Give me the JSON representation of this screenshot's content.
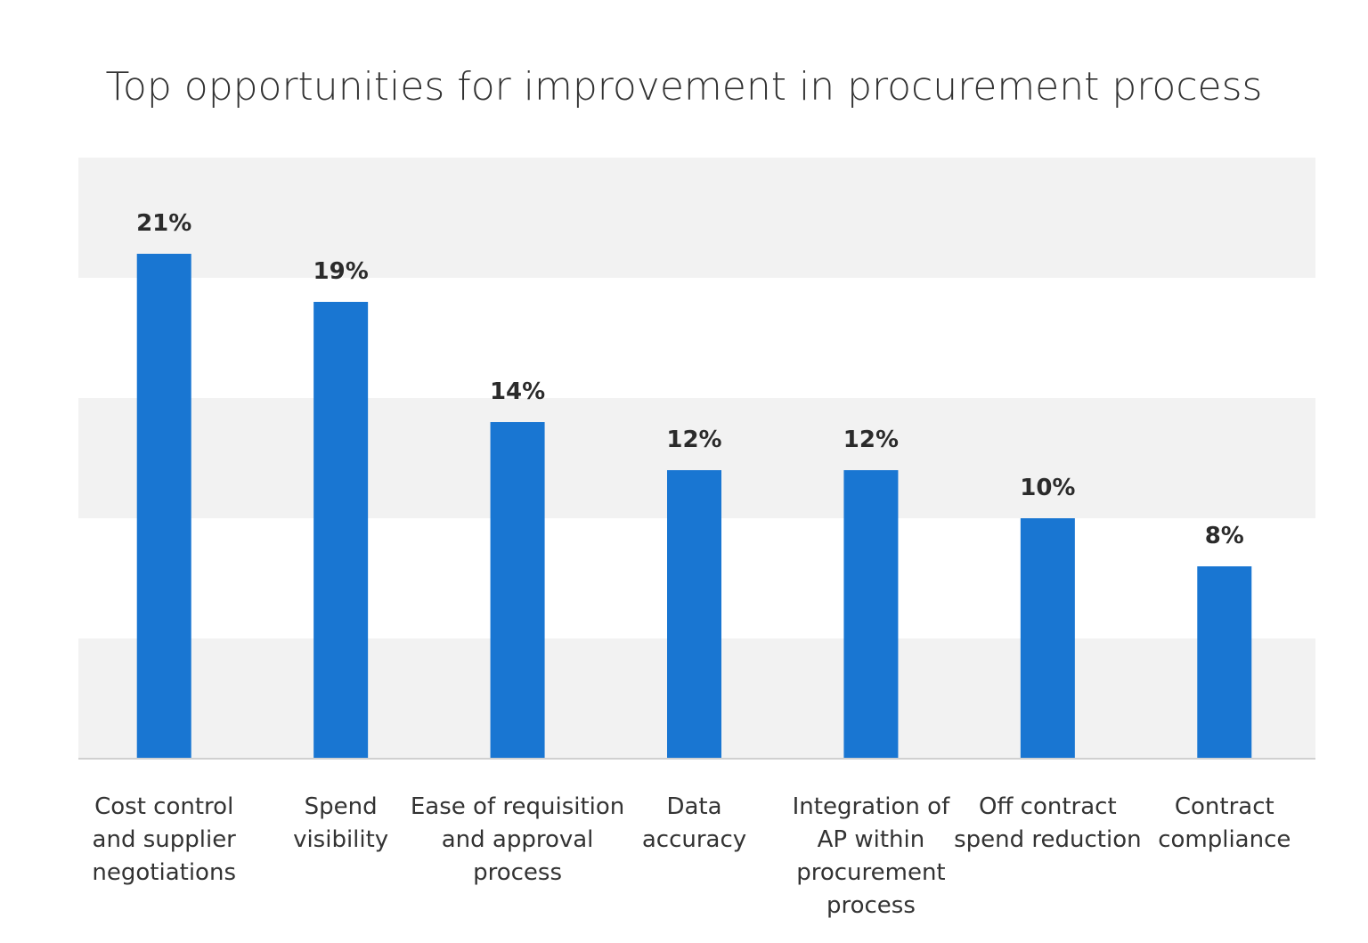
{
  "chart_data": {
    "type": "bar",
    "title": "Top opportunities for improvement in procurement process",
    "categories": [
      [
        "Cost control",
        "and supplier",
        "negotiations"
      ],
      [
        "Spend",
        "visibility"
      ],
      [
        "Ease of requisition",
        "and approval",
        "process"
      ],
      [
        "Data",
        "accuracy"
      ],
      [
        "Integration of",
        "AP within",
        "procurement",
        "process"
      ],
      [
        "Off contract",
        "spend reduction"
      ],
      [
        "Contract",
        "compliance"
      ]
    ],
    "values": [
      21,
      19,
      14,
      12,
      12,
      10,
      8
    ],
    "value_labels": [
      "21%",
      "19%",
      "14%",
      "12%",
      "12%",
      "10%",
      "8%"
    ],
    "xlabel": "",
    "ylabel": "",
    "ylim": [
      0,
      25
    ],
    "grid": "alternating horizontal bands every 5%",
    "bar_color": "#1976d2",
    "band_color": "#f2f2f2"
  }
}
